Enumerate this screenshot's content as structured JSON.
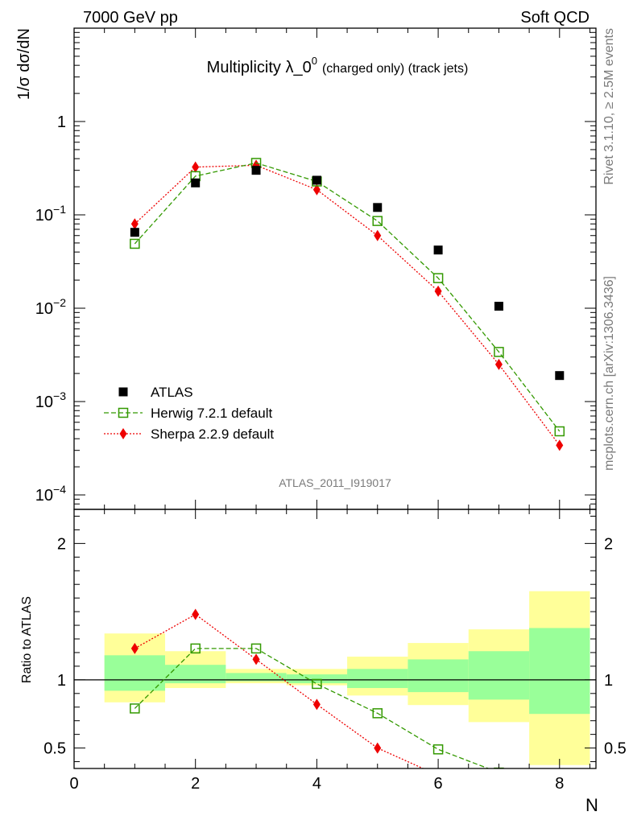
{
  "header": {
    "left": "7000 GeV pp",
    "right": "Soft QCD"
  },
  "side_labels": {
    "rivet": "Rivet 3.1.10, ≥ 2.5M events",
    "mcplots": "mcplots.cern.ch [arXiv:1306.3436]"
  },
  "chart_data": [
    {
      "type": "scatter",
      "title": "Multiplicity λ_0",
      "title_sup": "0",
      "title_suffix": "(charged only) (track jets)",
      "ylabel": "1/σ dσ/dN",
      "yscale": "log",
      "ylim": [
        7e-05,
        10
      ],
      "xlim": [
        0,
        8.6
      ],
      "analysis_label": "ATLAS_2011_I919017",
      "y_ticks": [
        {
          "value": 1,
          "base": "1",
          "exp": ""
        },
        {
          "value": 0.1,
          "base": "10",
          "exp": "−1"
        },
        {
          "value": 0.01,
          "base": "10",
          "exp": "−2"
        },
        {
          "value": 0.001,
          "base": "10",
          "exp": "−3"
        },
        {
          "value": 0.0001,
          "base": "10",
          "exp": "−4"
        }
      ],
      "legend_position": "bottom-left",
      "series": [
        {
          "name": "ATLAS",
          "color": "#000000",
          "marker": "square-filled",
          "x": [
            1,
            2,
            3,
            4,
            5,
            6,
            7,
            8
          ],
          "y": [
            0.065,
            0.22,
            0.3,
            0.235,
            0.12,
            0.042,
            0.0105,
            0.0019
          ]
        },
        {
          "name": "Herwig 7.2.1 default",
          "color": "#339900",
          "marker": "square-open",
          "line": "dashed",
          "x": [
            1,
            2,
            3,
            4,
            5,
            6,
            7,
            8
          ],
          "y": [
            0.049,
            0.26,
            0.36,
            0.228,
            0.086,
            0.021,
            0.0034,
            0.00048
          ]
        },
        {
          "name": "Sherpa 2.2.9 default",
          "color": "#ee0000",
          "marker": "diamond-filled",
          "line": "dotted",
          "x": [
            1,
            2,
            3,
            4,
            5,
            6,
            7,
            8
          ],
          "y": [
            0.08,
            0.325,
            0.34,
            0.186,
            0.06,
            0.0152,
            0.0025,
            0.00034
          ]
        }
      ]
    },
    {
      "type": "scatter",
      "ylabel": "Ratio to ATLAS",
      "xlabel": "N",
      "ylim": [
        0.35,
        2.25
      ],
      "xlim": [
        0,
        8.6
      ],
      "y_ticks": [
        0.5,
        1,
        2
      ],
      "x_ticks": [
        0,
        2,
        4,
        6,
        8
      ],
      "reference_line": 1,
      "bands": [
        {
          "x0": 0.5,
          "x1": 1.5,
          "yellow": [
            0.835,
            1.34
          ],
          "green": [
            0.92,
            1.18
          ]
        },
        {
          "x0": 1.5,
          "x1": 2.5,
          "yellow": [
            0.94,
            1.21
          ],
          "green": [
            0.975,
            1.11
          ]
        },
        {
          "x0": 2.5,
          "x1": 3.5,
          "yellow": [
            0.975,
            1.08
          ],
          "green": [
            0.99,
            1.05
          ]
        },
        {
          "x0": 3.5,
          "x1": 4.5,
          "yellow": [
            0.96,
            1.08
          ],
          "green": [
            0.975,
            1.04
          ]
        },
        {
          "x0": 4.5,
          "x1": 5.5,
          "yellow": [
            0.885,
            1.17
          ],
          "green": [
            0.94,
            1.08
          ]
        },
        {
          "x0": 5.5,
          "x1": 6.5,
          "yellow": [
            0.815,
            1.27
          ],
          "green": [
            0.91,
            1.15
          ]
        },
        {
          "x0": 6.5,
          "x1": 7.5,
          "yellow": [
            0.69,
            1.37
          ],
          "green": [
            0.855,
            1.21
          ]
        },
        {
          "x0": 7.5,
          "x1": 8.5,
          "yellow": [
            0.375,
            1.65
          ],
          "green": [
            0.75,
            1.38
          ]
        }
      ],
      "series": [
        {
          "name": "Herwig 7.2.1 default",
          "color": "#339900",
          "marker": "square-open",
          "line": "dashed",
          "x": [
            1,
            2,
            3,
            4,
            5,
            6,
            7
          ],
          "y": [
            0.79,
            1.23,
            1.23,
            0.97,
            0.755,
            0.49,
            0.32
          ]
        },
        {
          "name": "Sherpa 2.2.9 default",
          "color": "#ee0000",
          "marker": "diamond-filled",
          "line": "dotted",
          "x": [
            1,
            2,
            3,
            4,
            5,
            6
          ],
          "y": [
            1.23,
            1.48,
            1.15,
            0.82,
            0.5,
            0.3
          ]
        }
      ]
    }
  ]
}
